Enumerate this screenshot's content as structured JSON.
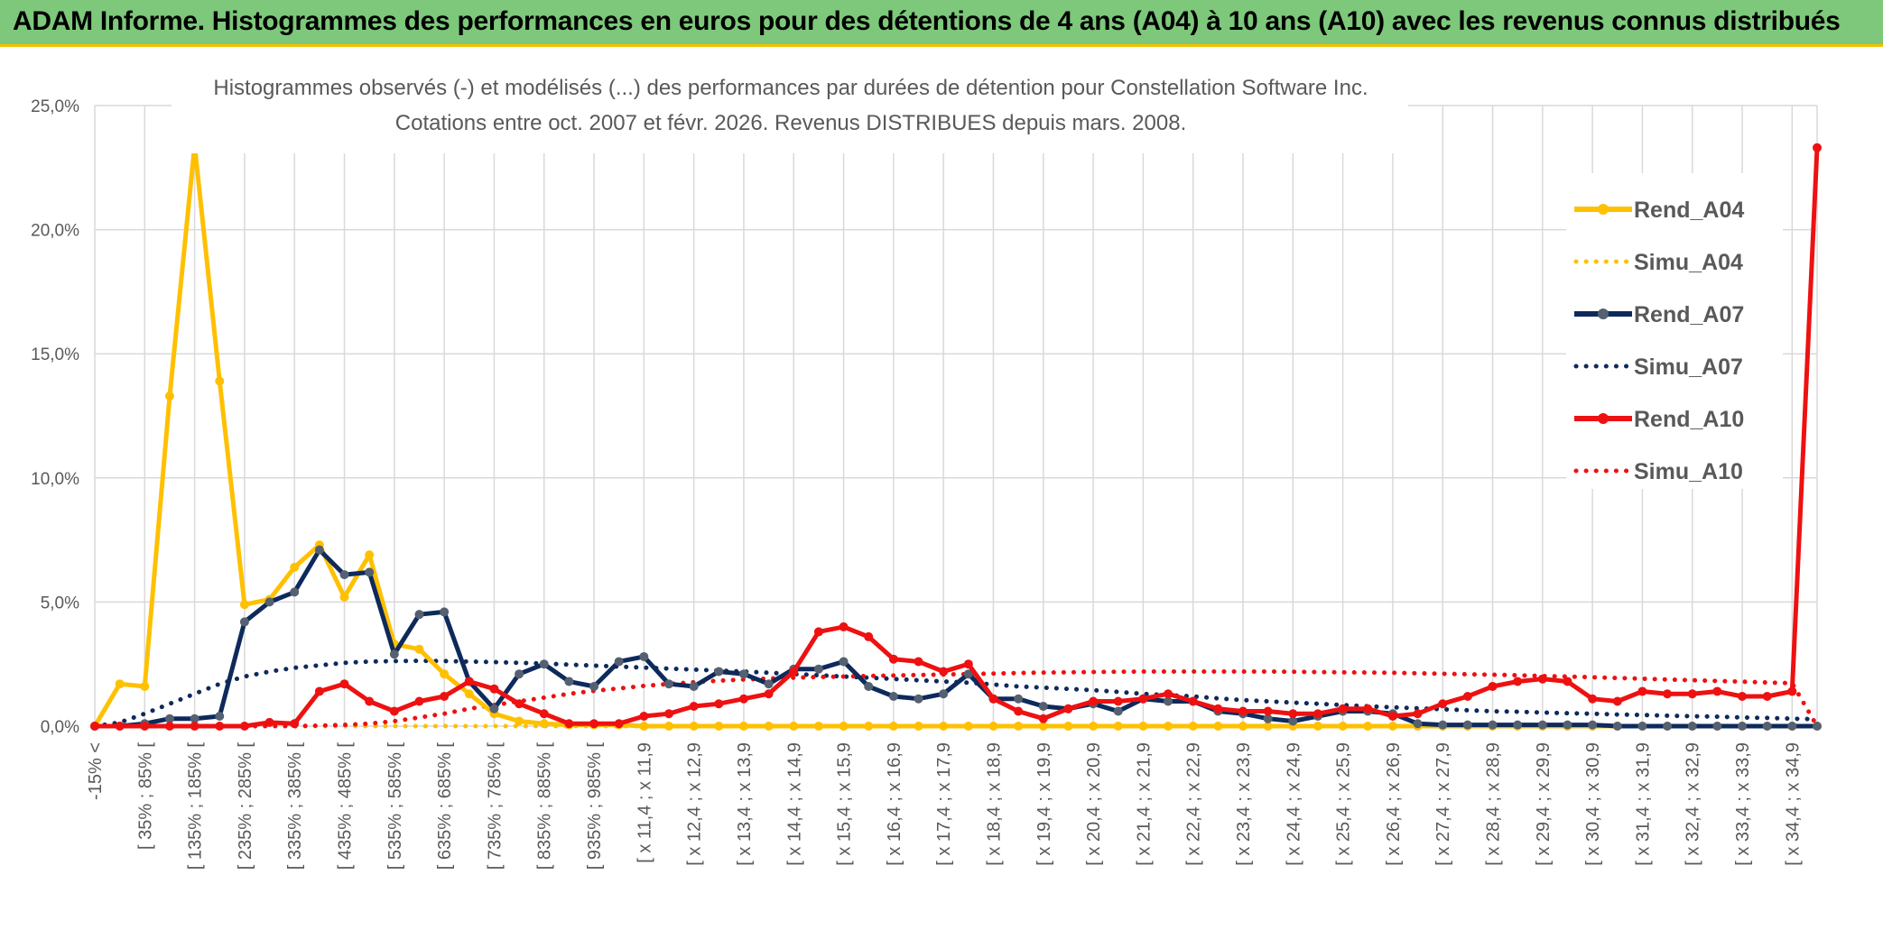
{
  "banner": {
    "title": "ADAM Informe. Histogrammes des performances en euros pour des détentions de 4 ans (A04) à 10 ans (A10) avec les revenus connus distribués"
  },
  "colors": {
    "banner_bg": "#7dc87a",
    "banner_accent": "#f2c200",
    "a04": "#ffc000",
    "a07": "#0e2a5c",
    "a07_marker": "#556070",
    "a10": "#ee1111",
    "grid": "#d9d9d9"
  },
  "chart_data": {
    "type": "line",
    "title_line1": "Histogrammes observés (-) et modélisés (...) des performances par durées de détention pour Constellation Software Inc.",
    "title_line2": "Cotations entre oct. 2007 et févr. 2026. Revenus DISTRIBUES depuis mars. 2008.",
    "ylim": [
      0,
      25
    ],
    "yticks": [
      0,
      5,
      10,
      15,
      20,
      25
    ],
    "ytick_labels": [
      "0,0%",
      "5,0%",
      "10,0%",
      "15,0%",
      "20,0%",
      "25,0%"
    ],
    "grid": true,
    "legend_position": "top-right",
    "x_tick_labels": [
      "-15% <",
      "[ 35% ; 85% [",
      "[ 135% ; 185% [",
      "[ 235% ; 285% [",
      "[ 335% ; 385% [",
      "[ 435% ; 485% [",
      "[ 535% ; 585% [",
      "[ 635% ; 685% [",
      "[ 735% ; 785% [",
      "[ 835% ; 885% [",
      "[ 935% ; 985% [",
      "[ x 11,4 ; x 11,9",
      "[ x 12,4 ; x 12,9",
      "[ x 13,4 ; x 13,9",
      "[ x 14,4 ; x 14,9",
      "[ x 15,4 ; x 15,9",
      "[ x 16,4 ; x 16,9",
      "[ x 17,4 ; x 17,9",
      "[ x 18,4 ; x 18,9",
      "[ x 19,4 ; x 19,9",
      "[ x 20,4 ; x 20,9",
      "[ x 21,4 ; x 21,9",
      "[ x 22,4 ; x 22,9",
      "[ x 23,4 ; x 23,9",
      "[ x 24,4 ; x 24,9",
      "[ x 25,4 ; x 25,9",
      "[ x 26,4 ; x 26,9",
      "[ x 27,4 ; x 27,9",
      "[ x 28,4 ; x 28,9",
      "[ x 29,4 ; x 29,9",
      "[ x 30,4 ; x 30,9",
      "[ x 31,4 ; x 31,9",
      "[ x 32,4 ; x 32,9",
      "[ x 33,4 ; x 33,9",
      "[ x 34,4 ; x 34,9"
    ],
    "n_points": 70,
    "series": [
      {
        "name": "Rend_A04",
        "style": "solid",
        "color": "#ffc000",
        "values": [
          0,
          1.7,
          1.6,
          13.3,
          23.4,
          13.9,
          4.9,
          5.1,
          6.4,
          7.3,
          5.2,
          6.9,
          3.3,
          3.1,
          2.1,
          1.3,
          0.5,
          0.2,
          0.1,
          0.05,
          0.05,
          0.05,
          0,
          0,
          0,
          0,
          0,
          0,
          0,
          0,
          0,
          0,
          0,
          0,
          0,
          0,
          0,
          0,
          0,
          0,
          0,
          0,
          0,
          0,
          0,
          0,
          0,
          0,
          0,
          0,
          0,
          0,
          0,
          0,
          0,
          0,
          0,
          0,
          0,
          0,
          0,
          0,
          0,
          0,
          0,
          0,
          0,
          0,
          0,
          0
        ]
      },
      {
        "name": "Simu_A04",
        "style": "dotted",
        "color": "#ffc000",
        "values": [
          0,
          0,
          0,
          0,
          0,
          0,
          0,
          0,
          0,
          0,
          0,
          0,
          0,
          0,
          0,
          0,
          0,
          0,
          0,
          0,
          0,
          0,
          0,
          0,
          0,
          0,
          0,
          0,
          0,
          0,
          0,
          0,
          0,
          0,
          0,
          0,
          0,
          0,
          0,
          0,
          0,
          0,
          0,
          0,
          0,
          0,
          0,
          0,
          0,
          0,
          0,
          0,
          0,
          0,
          0,
          0,
          0,
          0,
          0,
          0,
          0,
          0,
          0,
          0,
          0,
          0,
          0,
          0,
          0,
          0
        ]
      },
      {
        "name": "Rend_A07",
        "style": "solid",
        "color": "#0e2a5c",
        "values": [
          0,
          0,
          0.1,
          0.3,
          0.3,
          0.4,
          4.2,
          5.0,
          5.4,
          7.1,
          6.1,
          6.2,
          2.9,
          4.5,
          4.6,
          1.8,
          0.7,
          2.1,
          2.5,
          1.8,
          1.6,
          2.6,
          2.8,
          1.7,
          1.6,
          2.2,
          2.1,
          1.7,
          2.3,
          2.3,
          2.6,
          1.6,
          1.2,
          1.1,
          1.3,
          2.1,
          1.1,
          1.1,
          0.8,
          0.7,
          0.9,
          0.6,
          1.1,
          1.0,
          1.0,
          0.6,
          0.5,
          0.3,
          0.2,
          0.4,
          0.6,
          0.6,
          0.5,
          0.1,
          0.05,
          0.05,
          0.05,
          0.05,
          0.05,
          0.05,
          0.05,
          0,
          0,
          0,
          0,
          0,
          0,
          0,
          0,
          0
        ]
      },
      {
        "name": "Simu_A07",
        "style": "dotted",
        "color": "#0e2a5c",
        "values": [
          0,
          0.15,
          0.5,
          0.9,
          1.3,
          1.7,
          2.0,
          2.2,
          2.35,
          2.45,
          2.55,
          2.6,
          2.62,
          2.63,
          2.62,
          2.6,
          2.58,
          2.55,
          2.52,
          2.48,
          2.44,
          2.4,
          2.36,
          2.32,
          2.28,
          2.24,
          2.2,
          2.15,
          2.1,
          2.05,
          2.0,
          1.95,
          1.9,
          1.85,
          1.8,
          1.75,
          1.68,
          1.6,
          1.55,
          1.5,
          1.45,
          1.38,
          1.3,
          1.25,
          1.2,
          1.12,
          1.05,
          1.0,
          0.95,
          0.9,
          0.85,
          0.8,
          0.76,
          0.72,
          0.68,
          0.64,
          0.6,
          0.58,
          0.55,
          0.52,
          0.5,
          0.47,
          0.45,
          0.42,
          0.4,
          0.38,
          0.35,
          0.33,
          0.3,
          0.28
        ]
      },
      {
        "name": "Rend_A10",
        "style": "solid",
        "color": "#ee1111",
        "values": [
          0,
          0,
          0,
          0,
          0,
          0,
          0,
          0.15,
          0.1,
          1.4,
          1.7,
          1.0,
          0.6,
          1.0,
          1.2,
          1.8,
          1.5,
          0.9,
          0.5,
          0.1,
          0.1,
          0.1,
          0.4,
          0.5,
          0.8,
          0.9,
          1.1,
          1.3,
          2.2,
          3.8,
          4.0,
          3.6,
          2.7,
          2.6,
          2.2,
          2.5,
          1.1,
          0.6,
          0.3,
          0.7,
          1.0,
          1.0,
          1.1,
          1.3,
          1.0,
          0.7,
          0.6,
          0.6,
          0.5,
          0.5,
          0.7,
          0.7,
          0.4,
          0.5,
          0.9,
          1.2,
          1.6,
          1.8,
          1.9,
          1.8,
          1.1,
          1.0,
          1.4,
          1.3,
          1.3,
          1.4,
          1.2,
          1.2,
          1.4,
          23.3
        ]
      },
      {
        "name": "Simu_A10",
        "style": "dotted",
        "color": "#ee1111",
        "values": [
          0,
          0,
          0,
          0,
          0,
          0,
          0,
          0,
          0,
          0.02,
          0.05,
          0.1,
          0.2,
          0.35,
          0.5,
          0.7,
          0.85,
          1.0,
          1.15,
          1.3,
          1.42,
          1.52,
          1.62,
          1.7,
          1.77,
          1.83,
          1.88,
          1.92,
          1.95,
          1.98,
          2.0,
          2.02,
          2.04,
          2.06,
          2.08,
          2.1,
          2.12,
          2.14,
          2.16,
          2.17,
          2.18,
          2.19,
          2.2,
          2.2,
          2.2,
          2.2,
          2.2,
          2.2,
          2.19,
          2.18,
          2.17,
          2.16,
          2.15,
          2.13,
          2.11,
          2.09,
          2.07,
          2.05,
          2.02,
          2.0,
          1.97,
          1.94,
          1.91,
          1.88,
          1.85,
          1.82,
          1.79,
          1.76,
          1.73,
          0
        ]
      }
    ]
  }
}
